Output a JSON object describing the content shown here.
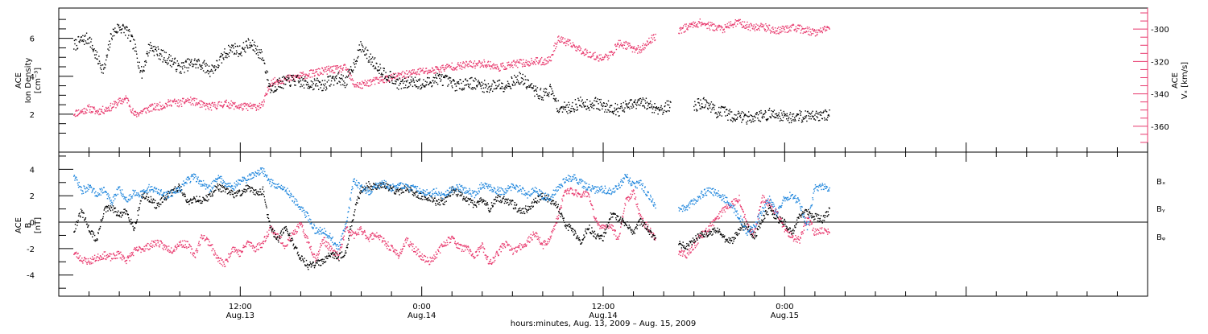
{
  "chart_data": [
    {
      "type": "scatter",
      "panel": "top",
      "ylabel_left": [
        "ACE",
        "Ion Density",
        "[cm⁻³]"
      ],
      "ylabel_right": [
        "ACE",
        "Vₓ [km/s]"
      ],
      "ylim_left": [
        0.0,
        7.6
      ],
      "ylim_right": [
        -376,
        -287
      ],
      "yticks_left": [
        "2",
        "4",
        "6"
      ],
      "yticks_left_values": [
        2,
        4,
        6
      ],
      "yticks_right": [
        "-300",
        "-320",
        "-340",
        "-360"
      ],
      "yticks_right_values": [
        -300,
        -320,
        -340,
        -360
      ],
      "colors": {
        "density": "#000000",
        "vx": "#e8386d"
      },
      "series": [
        {
          "key": "density",
          "axis": "left",
          "x_hours": [
            1,
            1.5,
            2,
            2.5,
            3,
            3.5,
            4,
            4.5,
            5,
            5.5,
            6,
            6.5,
            7,
            7.5,
            8,
            8.5,
            9,
            9.5,
            10,
            10.5,
            11,
            11.5,
            12,
            12.5,
            13,
            13.5,
            14,
            14.5,
            15,
            15.5,
            16,
            16.5,
            17,
            17.5,
            18,
            18.5,
            19,
            19.5,
            20,
            20.5,
            21,
            21.5,
            22,
            22.5,
            23,
            23.5,
            24,
            24.5,
            25,
            25.5,
            26,
            26.5,
            27,
            27.5,
            28,
            28.5,
            29,
            29.5,
            30,
            30.5,
            31,
            31.5,
            32,
            32.5,
            33,
            33.5,
            34,
            34.5,
            35,
            35.5,
            36,
            36.5,
            37,
            37.5,
            38,
            38.5,
            39,
            39.5,
            40,
            40.5,
            41,
            41.5,
            42,
            42.5,
            43,
            43.5,
            44,
            44.5,
            45,
            45.5,
            46,
            46.5,
            47,
            47.5,
            48,
            48.5,
            49,
            49.5,
            50,
            50.5,
            51
          ],
          "values": [
            5.6,
            5.9,
            6.0,
            5.0,
            4.3,
            6.2,
            6.6,
            6.4,
            5.6,
            4.1,
            5.6,
            5.3,
            5.0,
            4.8,
            4.4,
            4.6,
            4.7,
            4.6,
            4.3,
            4.6,
            5.2,
            5.5,
            5.3,
            5.7,
            5.5,
            5.0,
            3.3,
            3.6,
            3.7,
            3.8,
            3.7,
            3.6,
            3.6,
            3.5,
            3.8,
            3.9,
            3.7,
            4.6,
            5.6,
            5.0,
            4.6,
            4.2,
            3.9,
            3.6,
            3.6,
            3.8,
            3.5,
            3.7,
            3.9,
            3.8,
            3.6,
            3.5,
            3.7,
            3.6,
            3.5,
            3.4,
            3.6,
            3.5,
            3.7,
            3.9,
            3.6,
            3.2,
            3.0,
            3.3,
            2.4,
            2.3,
            2.4,
            2.6,
            2.5,
            2.6,
            2.4,
            2.4,
            2.2,
            2.4,
            2.5,
            2.6,
            2.5,
            2.3,
            2.3,
            2.5,
            null,
            null,
            2.4,
            2.6,
            2.5,
            2.1,
            2.1,
            1.9,
            1.9,
            1.8,
            1.9,
            1.9,
            2.0,
            2.0,
            1.9,
            1.8,
            1.9,
            1.9,
            2.0,
            1.9,
            2.0
          ]
        },
        {
          "key": "vx",
          "axis": "right",
          "x_hours": [
            1,
            1.5,
            2,
            2.5,
            3,
            3.5,
            4,
            4.5,
            5,
            5.5,
            6,
            6.5,
            7,
            7.5,
            8,
            8.5,
            9,
            9.5,
            10,
            10.5,
            11,
            11.5,
            12,
            12.5,
            13,
            13.5,
            14,
            14.5,
            15,
            15.5,
            16,
            16.5,
            17,
            17.5,
            18,
            18.5,
            19,
            19.5,
            20,
            20.5,
            21,
            21.5,
            22,
            22.5,
            23,
            23.5,
            24,
            24.5,
            25,
            25.5,
            26,
            26.5,
            27,
            27.5,
            28,
            28.5,
            29,
            29.5,
            30,
            30.5,
            31,
            31.5,
            32,
            32.5,
            33,
            33.5,
            34,
            34.5,
            35,
            35.5,
            36,
            36.5,
            37,
            37.5,
            38,
            38.5,
            39,
            39.5,
            40,
            40.5,
            41,
            41.5,
            42,
            42.5,
            43,
            43.5,
            44,
            44.5,
            45,
            45.5,
            46,
            46.5,
            47,
            47.5,
            48,
            48.5,
            49,
            49.5,
            50,
            50.5,
            51
          ],
          "values": [
            -352,
            -351,
            -349,
            -351,
            -350,
            -348,
            -345,
            -343,
            -353,
            -351,
            -349,
            -348,
            -347,
            -345,
            -346,
            -344,
            -345,
            -347,
            -348,
            -347,
            -346,
            -347,
            -348,
            -348,
            -348,
            -347,
            -333,
            -332,
            -331,
            -330,
            -329,
            -328,
            -327,
            -326,
            -325,
            -325,
            -324,
            -334,
            -335,
            -333,
            -332,
            -331,
            -330,
            -329,
            -328,
            -327,
            -326,
            -326,
            -325,
            -324,
            -323,
            -323,
            -322,
            -322,
            -321,
            -322,
            -324,
            -323,
            -322,
            -321,
            -321,
            -320,
            -320,
            -319,
            -306,
            -308,
            -310,
            -313,
            -315,
            -317,
            -318,
            -316,
            -309,
            -310,
            -312,
            -313,
            -308,
            -304,
            null,
            null,
            -301,
            -299,
            -297,
            -296,
            -298,
            -299,
            -300,
            -297,
            -296,
            -298,
            -299,
            -298,
            -300,
            -301,
            -300,
            -299,
            -300,
            -301,
            -302,
            -301,
            -300
          ]
        }
      ]
    },
    {
      "type": "scatter",
      "panel": "bottom",
      "ylabel_left": [
        "ACE",
        "B",
        "[nT]"
      ],
      "ylim": [
        -5.6,
        5.3
      ],
      "yticks_left": [
        "4",
        "2",
        "0",
        "-2",
        "-4"
      ],
      "yticks_left_values": [
        4,
        2,
        0,
        -2,
        -4
      ],
      "zero_line": true,
      "legend_position": "right",
      "colors": {
        "bx": "#000000",
        "by": "#1f86dd",
        "bz": "#e8386d"
      },
      "series": [
        {
          "key": "bx",
          "name": "Bₓ",
          "x_hours": [
            1,
            1.5,
            2,
            2.5,
            3,
            3.5,
            4,
            4.5,
            5,
            5.5,
            6,
            6.5,
            7,
            7.5,
            8,
            8.5,
            9,
            9.5,
            10,
            10.5,
            11,
            11.5,
            12,
            12.5,
            13,
            13.5,
            14,
            14.5,
            15,
            15.5,
            16,
            16.5,
            17,
            17.5,
            18,
            18.5,
            19,
            19.5,
            20,
            20.5,
            21,
            21.5,
            22,
            22.5,
            23,
            23.5,
            24,
            24.5,
            25,
            25.5,
            26,
            26.5,
            27,
            27.5,
            28,
            28.5,
            29,
            29.5,
            30,
            30.5,
            31,
            31.5,
            32,
            32.5,
            33,
            33.5,
            34,
            34.5,
            35,
            35.5,
            36,
            36.5,
            37,
            37.5,
            38,
            38.5,
            39,
            39.5,
            40,
            40.5,
            41,
            41.5,
            42,
            42.5,
            43,
            43.5,
            44,
            44.5,
            45,
            45.5,
            46,
            46.5,
            47,
            47.5,
            48,
            48.5,
            49,
            49.5,
            50,
            50.5,
            51
          ],
          "values": [
            -0.6,
            0.8,
            -0.5,
            -1.4,
            0.9,
            1.1,
            0.5,
            0.8,
            -0.5,
            2.0,
            1.8,
            1.2,
            1.8,
            2.3,
            2.7,
            1.5,
            1.8,
            1.6,
            2.0,
            2.7,
            2.4,
            2.1,
            2.2,
            2.6,
            2.2,
            2.4,
            -0.5,
            -1.3,
            -0.4,
            -1.6,
            -2.7,
            -3.3,
            -3.2,
            -2.9,
            -2.3,
            -2.7,
            -2.2,
            0.6,
            2.5,
            2.8,
            2.6,
            2.9,
            2.5,
            2.3,
            2.6,
            2.1,
            2.0,
            1.8,
            1.5,
            1.6,
            2.4,
            2.1,
            1.7,
            1.3,
            1.7,
            1.0,
            1.8,
            1.7,
            1.4,
            0.8,
            1.0,
            1.6,
            2.0,
            1.7,
            1.2,
            -0.2,
            -0.6,
            -1.5,
            -0.4,
            -1.0,
            -1.2,
            0.6,
            0.2,
            -0.1,
            -0.8,
            0.1,
            -0.7,
            -1.3,
            null,
            null,
            -1.6,
            -1.9,
            -1.4,
            -0.8,
            -1.0,
            -0.5,
            -1.2,
            -1.5,
            -0.6,
            -0.2,
            -1.2,
            0.2,
            1.0,
            0.2,
            0.0,
            -0.9,
            0.6,
            0.8,
            0.4,
            0.2,
            0.9
          ]
        },
        {
          "key": "by",
          "name": "Bᵧ",
          "x_hours": [
            1,
            1.5,
            2,
            2.5,
            3,
            3.5,
            4,
            4.5,
            5,
            5.5,
            6,
            6.5,
            7,
            7.5,
            8,
            8.5,
            9,
            9.5,
            10,
            10.5,
            11,
            11.5,
            12,
            12.5,
            13,
            13.5,
            14,
            14.5,
            15,
            15.5,
            16,
            16.5,
            17,
            17.5,
            18,
            18.5,
            19,
            19.5,
            20,
            20.5,
            21,
            21.5,
            22,
            22.5,
            23,
            23.5,
            24,
            24.5,
            25,
            25.5,
            26,
            26.5,
            27,
            27.5,
            28,
            28.5,
            29,
            29.5,
            30,
            30.5,
            31,
            31.5,
            32,
            32.5,
            33,
            33.5,
            34,
            34.5,
            35,
            35.5,
            36,
            36.5,
            37,
            37.5,
            38,
            38.5,
            39,
            39.5,
            40,
            40.5,
            41,
            41.5,
            42,
            42.5,
            43,
            43.5,
            44,
            44.5,
            45,
            45.5,
            46,
            46.5,
            47,
            47.5,
            48,
            48.5,
            49,
            49.5,
            50,
            50.5,
            51
          ],
          "values": [
            3.6,
            2.4,
            2.6,
            2.1,
            2.5,
            1.4,
            2.6,
            1.6,
            2.3,
            2.1,
            2.6,
            2.4,
            2.0,
            2.2,
            2.5,
            3.2,
            3.4,
            2.9,
            2.5,
            3.4,
            3.0,
            2.6,
            3.1,
            3.3,
            3.7,
            3.9,
            3.0,
            2.7,
            2.5,
            1.8,
            1.0,
            0.4,
            -0.7,
            -0.6,
            -1.2,
            -2.0,
            -0.2,
            3.2,
            2.6,
            2.3,
            2.7,
            2.9,
            2.6,
            2.8,
            2.7,
            2.5,
            2.4,
            2.1,
            2.3,
            2.0,
            2.5,
            2.6,
            2.4,
            2.1,
            2.8,
            2.6,
            2.4,
            2.3,
            2.7,
            2.5,
            2.1,
            2.4,
            2.0,
            1.8,
            2.6,
            3.2,
            3.4,
            3.0,
            2.6,
            2.4,
            2.5,
            2.3,
            2.6,
            3.5,
            2.8,
            2.9,
            2.0,
            1.2,
            null,
            null,
            0.9,
            1.1,
            1.5,
            2.1,
            2.4,
            2.2,
            1.8,
            1.2,
            0.4,
            -0.8,
            -0.4,
            0.8,
            1.7,
            0.6,
            1.8,
            2.1,
            1.4,
            -0.3,
            2.6,
            2.7,
            2.6
          ]
        },
        {
          "key": "bz",
          "name": "Bᵩ",
          "x_hours": [
            1,
            1.5,
            2,
            2.5,
            3,
            3.5,
            4,
            4.5,
            5,
            5.5,
            6,
            6.5,
            7,
            7.5,
            8,
            8.5,
            9,
            9.5,
            10,
            10.5,
            11,
            11.5,
            12,
            12.5,
            13,
            13.5,
            14,
            14.5,
            15,
            15.5,
            16,
            16.5,
            17,
            17.5,
            18,
            18.5,
            19,
            19.5,
            20,
            20.5,
            21,
            21.5,
            22,
            22.5,
            23,
            23.5,
            24,
            24.5,
            25,
            25.5,
            26,
            26.5,
            27,
            27.5,
            28,
            28.5,
            29,
            29.5,
            30,
            30.5,
            31,
            31.5,
            32,
            32.5,
            33,
            33.5,
            34,
            34.5,
            35,
            35.5,
            36,
            36.5,
            37,
            37.5,
            38,
            38.5,
            39,
            39.5,
            40,
            40.5,
            41,
            41.5,
            42,
            42.5,
            43,
            43.5,
            44,
            44.5,
            45,
            45.5,
            46,
            46.5,
            47,
            47.5,
            48,
            48.5,
            49,
            49.5,
            50,
            50.5,
            51
          ],
          "values": [
            -2.3,
            -2.8,
            -3.0,
            -2.7,
            -2.5,
            -2.7,
            -2.4,
            -2.9,
            -2.2,
            -2.0,
            -1.8,
            -1.5,
            -1.9,
            -2.1,
            -1.6,
            -1.7,
            -2.5,
            -1.0,
            -1.6,
            -2.8,
            -3.2,
            -1.9,
            -2.4,
            -1.5,
            -2.0,
            -1.6,
            -0.4,
            -1.1,
            -1.8,
            -0.9,
            -0.2,
            -1.5,
            -2.8,
            -1.3,
            -2.1,
            -2.6,
            -0.5,
            -1.0,
            -0.6,
            -1.2,
            -0.9,
            -1.5,
            -2.0,
            -2.5,
            -1.4,
            -2.0,
            -2.6,
            -3.0,
            -2.4,
            -1.6,
            -1.2,
            -1.9,
            -2.0,
            -2.6,
            -1.8,
            -3.2,
            -2.4,
            -1.6,
            -2.2,
            -1.9,
            -1.5,
            -0.8,
            -1.8,
            -1.2,
            0.3,
            2.4,
            2.3,
            2.1,
            2.2,
            0.1,
            -0.5,
            -0.2,
            -1.3,
            1.6,
            2.3,
            0.2,
            -0.4,
            -1.5,
            null,
            null,
            -2.2,
            -2.5,
            -1.8,
            -1.0,
            -0.5,
            0.3,
            1.0,
            1.4,
            1.8,
            -0.2,
            -0.9,
            1.8,
            1.4,
            0.6,
            -0.5,
            -1.1,
            -1.4,
            0.4,
            -0.8,
            -0.6,
            -0.8
          ]
        }
      ]
    }
  ],
  "x_axis": {
    "range_hours": [
      0,
      72
    ],
    "tick_labels": [
      {
        "hour": 12,
        "time": "12:00",
        "date": "Aug.13"
      },
      {
        "hour": 24,
        "time": "0:00",
        "date": "Aug.14"
      },
      {
        "hour": 36,
        "time": "12:00",
        "date": "Aug.14"
      },
      {
        "hour": 48,
        "time": "0:00",
        "date": "Aug.15"
      }
    ],
    "xlabel": "hours:minutes, Aug. 13, 2009 – Aug. 15, 2009"
  }
}
